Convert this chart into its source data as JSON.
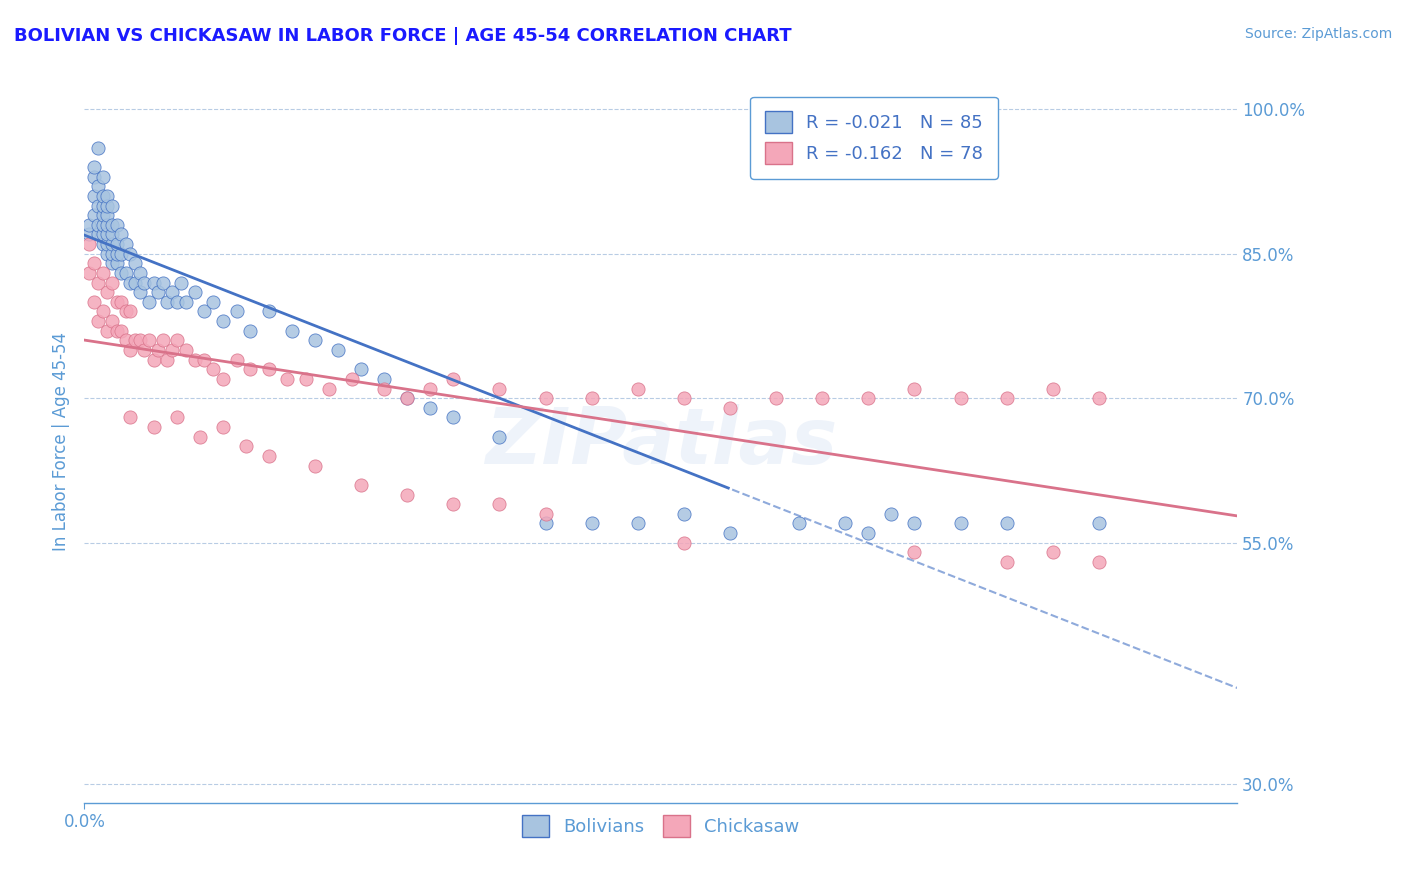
{
  "title": "BOLIVIAN VS CHICKASAW IN LABOR FORCE | AGE 45-54 CORRELATION CHART",
  "source_text": "Source: ZipAtlas.com",
  "ylabel": "In Labor Force | Age 45-54",
  "xlim": [
    0.0,
    0.25
  ],
  "ylim": [
    0.28,
    1.03
  ],
  "yticks": [
    0.3,
    0.55,
    0.7,
    0.85,
    1.0
  ],
  "ytick_labels": [
    "30.0%",
    "55.0%",
    "70.0%",
    "85.0%",
    "100.0%"
  ],
  "title_color": "#1a1aff",
  "axis_color": "#5b9bd5",
  "tick_color": "#5b9bd5",
  "grid_color": "#b8cce4",
  "background_color": "#ffffff",
  "watermark_text": "ZIPatlas",
  "legend_r1": "R = -0.021",
  "legend_n1": "N = 85",
  "legend_r2": "R = -0.162",
  "legend_n2": "N = 78",
  "series1_label": "Bolivians",
  "series2_label": "Chickasaw",
  "series1_color": "#a8c4e0",
  "series2_color": "#f4a7b9",
  "trend1_color": "#4472c4",
  "trend2_color": "#d9728a",
  "trend1_solid_end": 0.14,
  "bolivian_x": [
    0.001,
    0.001,
    0.002,
    0.002,
    0.002,
    0.002,
    0.003,
    0.003,
    0.003,
    0.003,
    0.003,
    0.004,
    0.004,
    0.004,
    0.004,
    0.004,
    0.004,
    0.004,
    0.005,
    0.005,
    0.005,
    0.005,
    0.005,
    0.005,
    0.005,
    0.006,
    0.006,
    0.006,
    0.006,
    0.006,
    0.006,
    0.007,
    0.007,
    0.007,
    0.007,
    0.008,
    0.008,
    0.008,
    0.009,
    0.009,
    0.01,
    0.01,
    0.011,
    0.011,
    0.012,
    0.012,
    0.013,
    0.014,
    0.015,
    0.016,
    0.017,
    0.018,
    0.019,
    0.02,
    0.021,
    0.022,
    0.024,
    0.026,
    0.028,
    0.03,
    0.033,
    0.036,
    0.04,
    0.045,
    0.05,
    0.055,
    0.06,
    0.065,
    0.07,
    0.075,
    0.08,
    0.09,
    0.1,
    0.11,
    0.12,
    0.13,
    0.14,
    0.155,
    0.165,
    0.17,
    0.175,
    0.18,
    0.19,
    0.2,
    0.22
  ],
  "bolivian_y": [
    0.87,
    0.88,
    0.89,
    0.91,
    0.93,
    0.94,
    0.87,
    0.88,
    0.9,
    0.92,
    0.96,
    0.86,
    0.87,
    0.88,
    0.89,
    0.9,
    0.91,
    0.93,
    0.85,
    0.86,
    0.87,
    0.88,
    0.89,
    0.9,
    0.91,
    0.84,
    0.85,
    0.86,
    0.87,
    0.88,
    0.9,
    0.84,
    0.85,
    0.86,
    0.88,
    0.83,
    0.85,
    0.87,
    0.83,
    0.86,
    0.82,
    0.85,
    0.82,
    0.84,
    0.81,
    0.83,
    0.82,
    0.8,
    0.82,
    0.81,
    0.82,
    0.8,
    0.81,
    0.8,
    0.82,
    0.8,
    0.81,
    0.79,
    0.8,
    0.78,
    0.79,
    0.77,
    0.79,
    0.77,
    0.76,
    0.75,
    0.73,
    0.72,
    0.7,
    0.69,
    0.68,
    0.66,
    0.57,
    0.57,
    0.57,
    0.58,
    0.56,
    0.57,
    0.57,
    0.56,
    0.58,
    0.57,
    0.57,
    0.57,
    0.57
  ],
  "chickasaw_x": [
    0.001,
    0.001,
    0.002,
    0.002,
    0.003,
    0.003,
    0.004,
    0.004,
    0.005,
    0.005,
    0.006,
    0.006,
    0.007,
    0.007,
    0.008,
    0.008,
    0.009,
    0.009,
    0.01,
    0.01,
    0.011,
    0.012,
    0.013,
    0.014,
    0.015,
    0.016,
    0.017,
    0.018,
    0.019,
    0.02,
    0.022,
    0.024,
    0.026,
    0.028,
    0.03,
    0.033,
    0.036,
    0.04,
    0.044,
    0.048,
    0.053,
    0.058,
    0.065,
    0.07,
    0.075,
    0.08,
    0.09,
    0.1,
    0.11,
    0.12,
    0.13,
    0.14,
    0.15,
    0.16,
    0.17,
    0.18,
    0.19,
    0.2,
    0.21,
    0.22,
    0.01,
    0.015,
    0.02,
    0.025,
    0.03,
    0.035,
    0.04,
    0.05,
    0.06,
    0.07,
    0.08,
    0.09,
    0.1,
    0.13,
    0.18,
    0.2,
    0.21,
    0.22
  ],
  "chickasaw_y": [
    0.83,
    0.86,
    0.8,
    0.84,
    0.78,
    0.82,
    0.79,
    0.83,
    0.77,
    0.81,
    0.78,
    0.82,
    0.77,
    0.8,
    0.77,
    0.8,
    0.76,
    0.79,
    0.75,
    0.79,
    0.76,
    0.76,
    0.75,
    0.76,
    0.74,
    0.75,
    0.76,
    0.74,
    0.75,
    0.76,
    0.75,
    0.74,
    0.74,
    0.73,
    0.72,
    0.74,
    0.73,
    0.73,
    0.72,
    0.72,
    0.71,
    0.72,
    0.71,
    0.7,
    0.71,
    0.72,
    0.71,
    0.7,
    0.7,
    0.71,
    0.7,
    0.69,
    0.7,
    0.7,
    0.7,
    0.71,
    0.7,
    0.7,
    0.71,
    0.7,
    0.68,
    0.67,
    0.68,
    0.66,
    0.67,
    0.65,
    0.64,
    0.63,
    0.61,
    0.6,
    0.59,
    0.59,
    0.58,
    0.55,
    0.54,
    0.53,
    0.54,
    0.53
  ]
}
